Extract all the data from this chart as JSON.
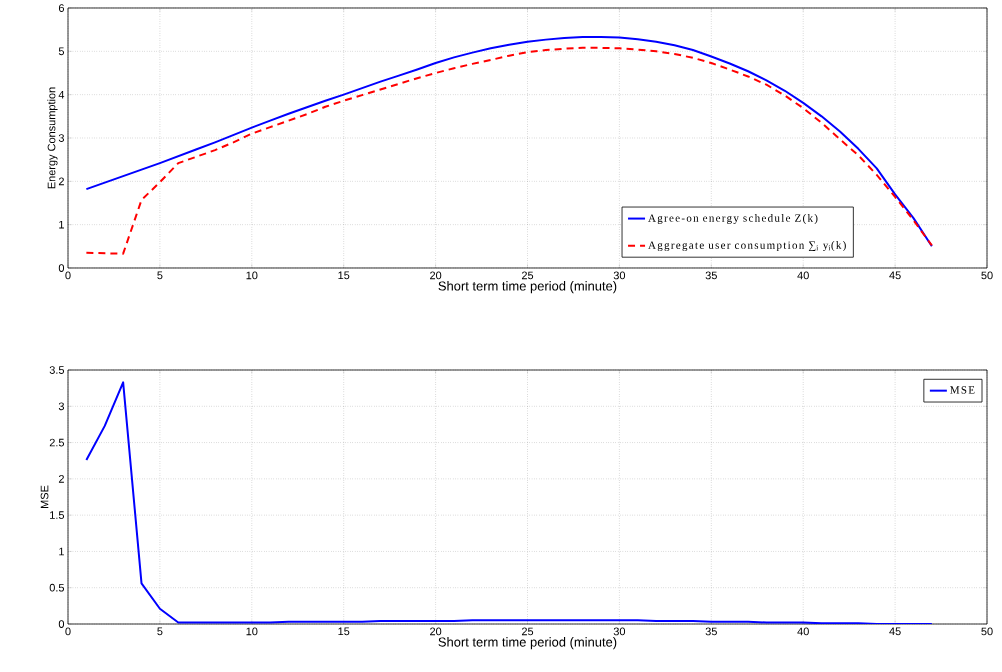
{
  "chart_data": [
    {
      "type": "line",
      "xlabel": "Short term time period (minute)",
      "ylabel": "Energy Consumption",
      "x": [
        1,
        2,
        3,
        4,
        5,
        6,
        7,
        8,
        9,
        10,
        11,
        12,
        13,
        14,
        15,
        16,
        17,
        18,
        19,
        20,
        21,
        22,
        23,
        24,
        25,
        26,
        27,
        28,
        29,
        30,
        31,
        32,
        33,
        34,
        35,
        36,
        37,
        38,
        39,
        40,
        41,
        42,
        43,
        44,
        45,
        46,
        47
      ],
      "series": [
        {
          "name": "Agree-on energy schedule Z(k)",
          "color": "#0000ff",
          "line_style": "solid",
          "values": [
            1.82,
            1.97,
            2.12,
            2.27,
            2.42,
            2.58,
            2.74,
            2.9,
            3.07,
            3.24,
            3.4,
            3.56,
            3.71,
            3.86,
            4.0,
            4.15,
            4.3,
            4.44,
            4.58,
            4.73,
            4.86,
            4.97,
            5.07,
            5.15,
            5.22,
            5.27,
            5.31,
            5.33,
            5.33,
            5.32,
            5.28,
            5.22,
            5.14,
            5.03,
            4.88,
            4.72,
            4.54,
            4.33,
            4.09,
            3.81,
            3.5,
            3.15,
            2.75,
            2.3,
            1.7,
            1.15,
            0.5
          ]
        },
        {
          "name": "Aggregate user consumption ∑$_{i}$ y$_{i}$(k)",
          "color": "#ff0000",
          "line_style": "dashed",
          "values": [
            0.35,
            0.34,
            0.33,
            1.57,
            1.98,
            2.42,
            2.57,
            2.72,
            2.9,
            3.1,
            3.25,
            3.4,
            3.55,
            3.72,
            3.86,
            3.99,
            4.12,
            4.25,
            4.38,
            4.5,
            4.61,
            4.71,
            4.8,
            4.9,
            4.98,
            5.03,
            5.06,
            5.08,
            5.08,
            5.07,
            5.04,
            5.0,
            4.94,
            4.85,
            4.73,
            4.58,
            4.42,
            4.23,
            3.98,
            3.69,
            3.35,
            2.97,
            2.6,
            2.15,
            1.64,
            1.1,
            0.52
          ]
        }
      ],
      "xlim": [
        0,
        50
      ],
      "xticks": [
        0,
        5,
        10,
        15,
        20,
        25,
        30,
        35,
        40,
        45,
        50
      ],
      "ylim": [
        0,
        6
      ],
      "yticks": [
        0,
        1,
        2,
        3,
        4,
        5,
        6
      ],
      "grid": true,
      "legend": "bottom right"
    },
    {
      "type": "line",
      "xlabel": "Short term time period (minute)",
      "ylabel": "MSE",
      "x": [
        1,
        2,
        3,
        4,
        5,
        6,
        7,
        8,
        9,
        10,
        11,
        12,
        13,
        14,
        15,
        16,
        17,
        18,
        19,
        20,
        21,
        22,
        23,
        24,
        25,
        26,
        27,
        28,
        29,
        30,
        31,
        32,
        33,
        34,
        35,
        36,
        37,
        38,
        39,
        40,
        41,
        42,
        43,
        44,
        45,
        46,
        47
      ],
      "series": [
        {
          "name": "MSE",
          "color": "#0000ff",
          "line_style": "solid",
          "values": [
            2.26,
            2.73,
            3.33,
            0.56,
            0.21,
            0.02,
            0.02,
            0.02,
            0.02,
            0.02,
            0.02,
            0.03,
            0.03,
            0.03,
            0.03,
            0.03,
            0.04,
            0.04,
            0.04,
            0.04,
            0.04,
            0.05,
            0.05,
            0.05,
            0.05,
            0.05,
            0.05,
            0.05,
            0.05,
            0.05,
            0.05,
            0.04,
            0.04,
            0.04,
            0.03,
            0.03,
            0.03,
            0.02,
            0.02,
            0.02,
            0.01,
            0.01,
            0.01,
            0.0,
            0.0,
            0.0,
            0.0
          ]
        }
      ],
      "xlim": [
        0,
        50
      ],
      "xticks": [
        0,
        5,
        10,
        15,
        20,
        25,
        30,
        35,
        40,
        45,
        50
      ],
      "ylim": [
        0,
        3.5
      ],
      "yticks": [
        0,
        0.5,
        1,
        1.5,
        2,
        2.5,
        3,
        3.5
      ],
      "grid": true,
      "legend": "top right"
    }
  ]
}
